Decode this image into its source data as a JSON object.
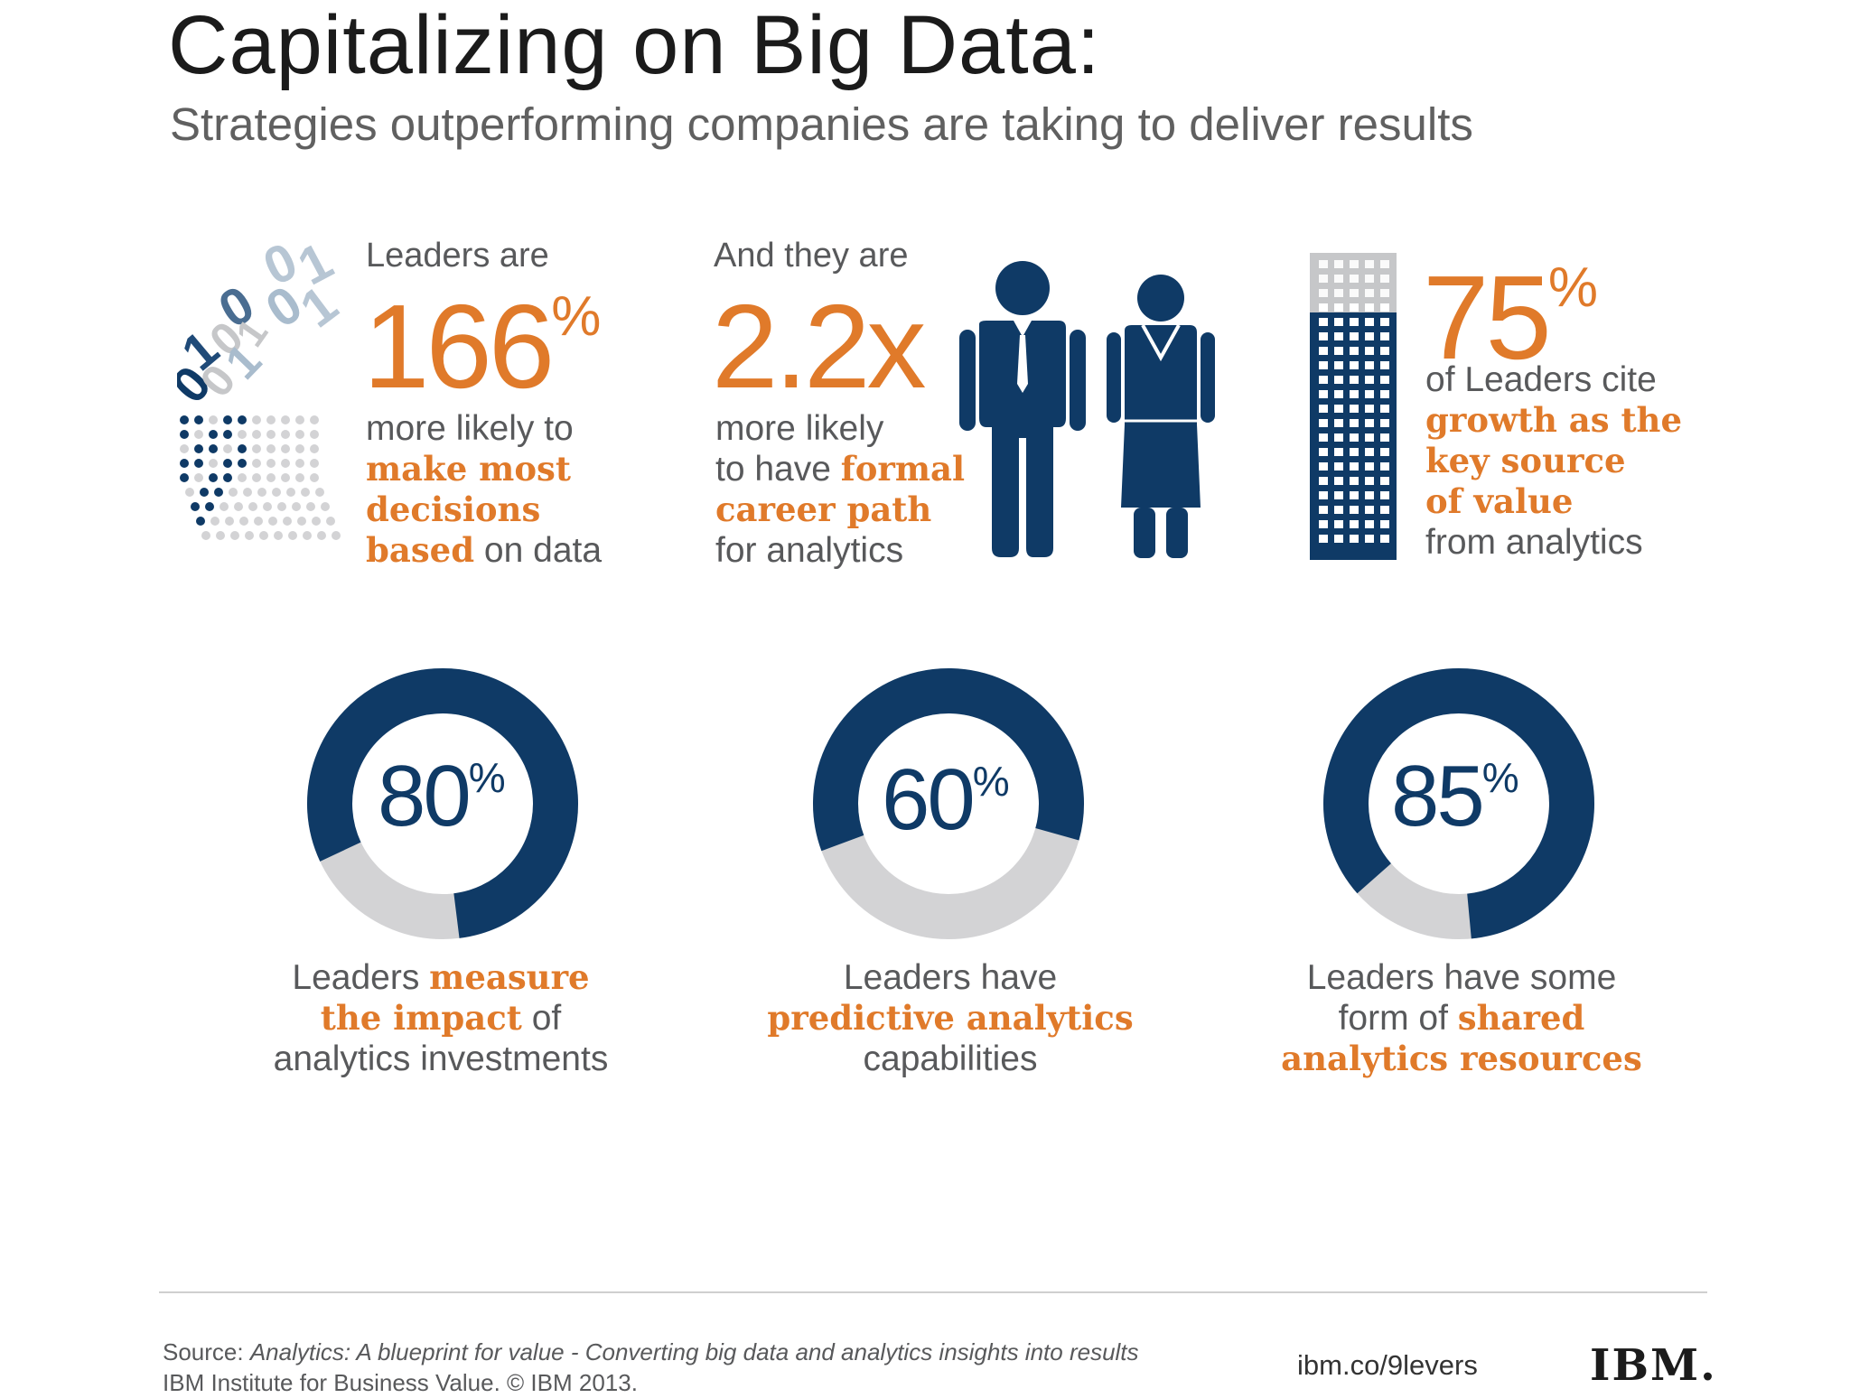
{
  "header": {
    "title": "Capitalizing on Big Data:",
    "subtitle": "Strategies outperforming companies are taking to deliver results"
  },
  "stat1": {
    "lead": "Leaders are",
    "value": "166",
    "unit": "%",
    "line1": "more likely to",
    "highlight1": "make most",
    "highlight2": "decisions",
    "highlight3": "based",
    "tail": " on data"
  },
  "stat2": {
    "lead": "And they are",
    "value": "2.2x",
    "line1": "more likely",
    "line2_pre": "to have ",
    "highlight1": "formal",
    "highlight2": "career path",
    "line4": "for analytics"
  },
  "stat3": {
    "value": "75",
    "unit": "%",
    "line1": "of Leaders cite",
    "highlight1": "growth as the",
    "highlight2": "key source",
    "highlight3": "of value",
    "line5": "from analytics"
  },
  "binary_digits": [
    "0",
    "1",
    "0",
    "0",
    "1",
    "1",
    "0",
    "1",
    "0",
    "0",
    "1"
  ],
  "colors": {
    "navy": "#0f3a66",
    "orange": "#e07a2a",
    "gray": "#d3d3d5",
    "text": "#58595b"
  },
  "icons": [
    "binary-dots-icon",
    "businessman-icon",
    "businesswoman-icon",
    "building-icon"
  ],
  "chart_data": {
    "type": "pie",
    "donuts": [
      {
        "value": 80,
        "unit": "%",
        "caption_pre": "Leaders ",
        "highlight1": "measure",
        "highlight2": "the impact",
        "caption_mid": " of",
        "caption_post": "analytics investments"
      },
      {
        "value": 60,
        "unit": "%",
        "caption_pre": "Leaders have",
        "highlight1": "predictive analytics",
        "caption_post": "capabilities"
      },
      {
        "value": 85,
        "unit": "%",
        "caption_pre": "Leaders have some",
        "caption_mid": "form of ",
        "highlight1": "shared",
        "highlight2": "analytics resources"
      }
    ]
  },
  "footer": {
    "source_label": "Source: ",
    "source_title": "Analytics: A blueprint for value - Converting big data and analytics insights into results",
    "source_org": "IBM Institute for Business Value. © IBM 2013.",
    "url": "ibm.co/9levers",
    "logo": "IBM."
  }
}
